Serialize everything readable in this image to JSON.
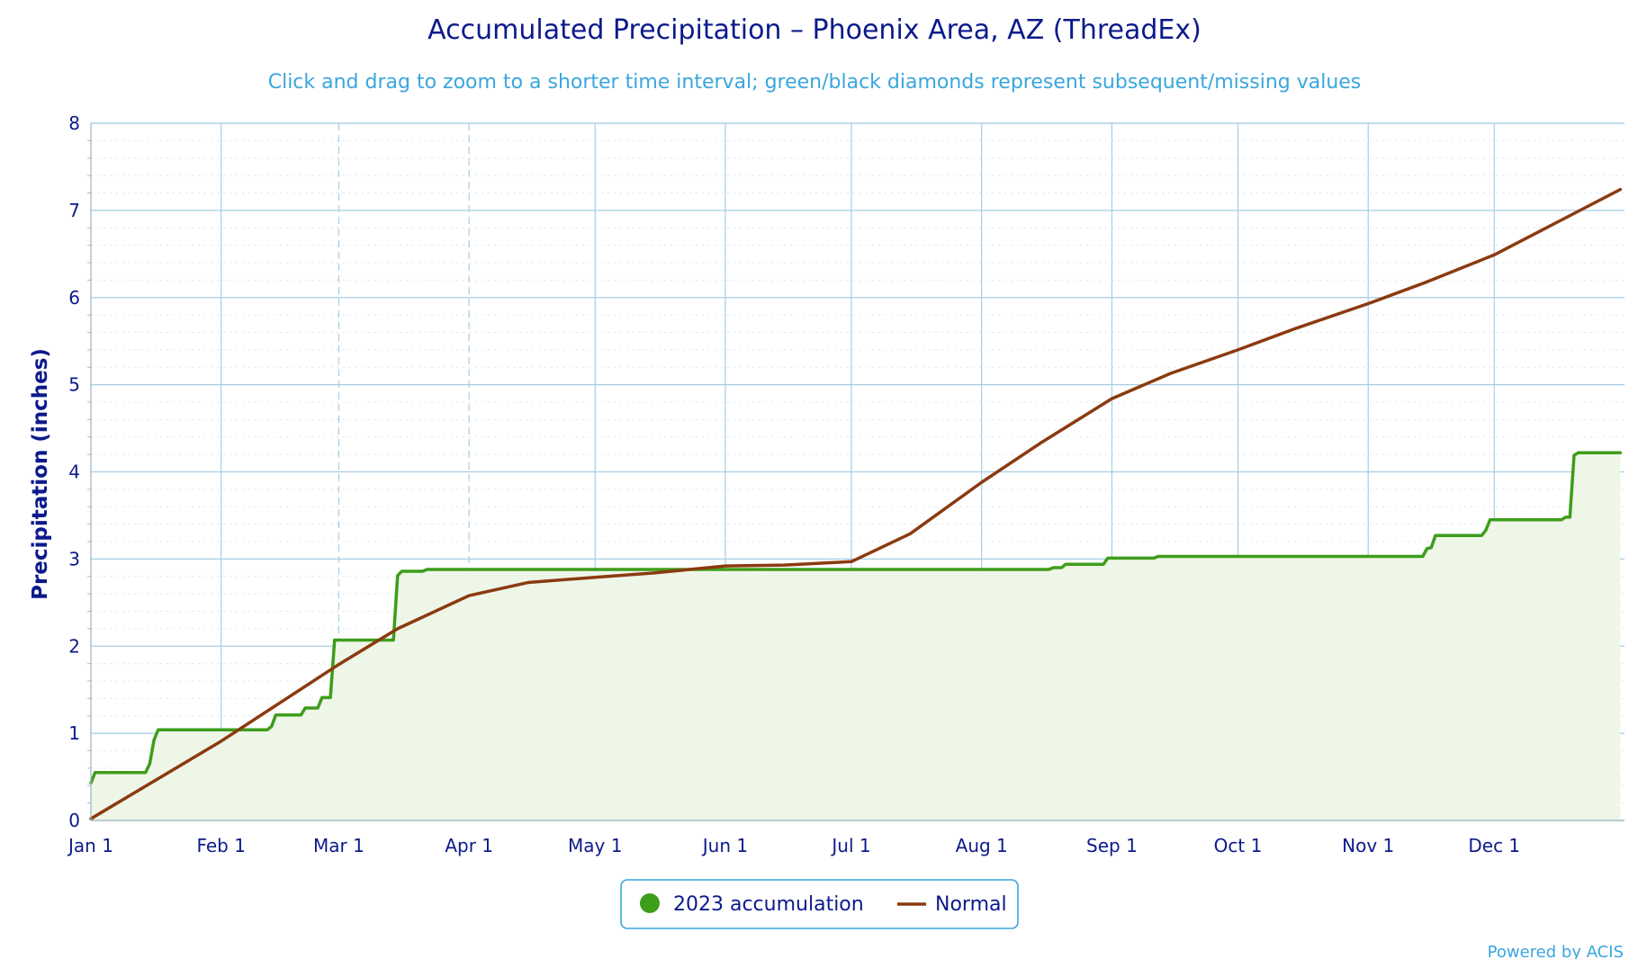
{
  "chart_data": {
    "type": "line",
    "title": "Accumulated Precipitation – Phoenix Area, AZ (ThreadEx)",
    "subtitle": "Click and drag to zoom to a shorter time interval; green/black diamonds represent subsequent/missing values",
    "ylabel": "Precipitation (inches)",
    "ylim": [
      0,
      8
    ],
    "yticks": [
      0,
      1,
      2,
      3,
      4,
      5,
      6,
      7,
      8
    ],
    "xlim": [
      "2023-01-01",
      "2024-01-01"
    ],
    "xticks": [
      {
        "date": "2023-01-01",
        "label": "Jan 1"
      },
      {
        "date": "2023-02-01",
        "label": "Feb 1"
      },
      {
        "date": "2023-03-01",
        "label": "Mar 1"
      },
      {
        "date": "2023-04-01",
        "label": "Apr 1"
      },
      {
        "date": "2023-05-01",
        "label": "May 1"
      },
      {
        "date": "2023-06-01",
        "label": "Jun 1"
      },
      {
        "date": "2023-07-01",
        "label": "Jul 1"
      },
      {
        "date": "2023-08-01",
        "label": "Aug 1"
      },
      {
        "date": "2023-09-01",
        "label": "Sep 1"
      },
      {
        "date": "2023-10-01",
        "label": "Oct 1"
      },
      {
        "date": "2023-11-01",
        "label": "Nov 1"
      },
      {
        "date": "2023-12-01",
        "label": "Dec 1"
      }
    ],
    "grid": true,
    "legend_position": "bottom-center",
    "credit": "Powered by ACIS",
    "series": [
      {
        "name": "2023 accumulation",
        "color": "#3e9d1b",
        "fill": "#eef6e8",
        "style": "step-area",
        "points": [
          [
            "2023-01-01",
            0.43
          ],
          [
            "2023-01-02",
            0.55
          ],
          [
            "2023-01-14",
            0.55
          ],
          [
            "2023-01-15",
            0.65
          ],
          [
            "2023-01-16",
            0.92
          ],
          [
            "2023-01-17",
            1.04
          ],
          [
            "2023-02-12",
            1.04
          ],
          [
            "2023-02-13",
            1.08
          ],
          [
            "2023-02-14",
            1.21
          ],
          [
            "2023-02-20",
            1.21
          ],
          [
            "2023-02-21",
            1.29
          ],
          [
            "2023-02-24",
            1.29
          ],
          [
            "2023-02-25",
            1.41
          ],
          [
            "2023-02-27",
            1.41
          ],
          [
            "2023-02-28",
            2.07
          ],
          [
            "2023-03-14",
            2.07
          ],
          [
            "2023-03-15",
            2.81
          ],
          [
            "2023-03-16",
            2.86
          ],
          [
            "2023-03-21",
            2.86
          ],
          [
            "2023-03-22",
            2.88
          ],
          [
            "2023-08-17",
            2.88
          ],
          [
            "2023-08-18",
            2.9
          ],
          [
            "2023-08-20",
            2.9
          ],
          [
            "2023-08-21",
            2.94
          ],
          [
            "2023-08-30",
            2.94
          ],
          [
            "2023-08-31",
            3.01
          ],
          [
            "2023-09-11",
            3.01
          ],
          [
            "2023-09-12",
            3.03
          ],
          [
            "2023-11-14",
            3.03
          ],
          [
            "2023-11-15",
            3.12
          ],
          [
            "2023-11-16",
            3.13
          ],
          [
            "2023-11-17",
            3.27
          ],
          [
            "2023-11-28",
            3.27
          ],
          [
            "2023-11-29",
            3.33
          ],
          [
            "2023-11-30",
            3.45
          ],
          [
            "2023-12-17",
            3.45
          ],
          [
            "2023-12-18",
            3.48
          ],
          [
            "2023-12-19",
            3.48
          ],
          [
            "2023-12-20",
            4.19
          ],
          [
            "2023-12-21",
            4.22
          ],
          [
            "2023-12-31",
            4.22
          ]
        ]
      },
      {
        "name": "Normal",
        "color": "#8b3a10",
        "style": "line",
        "points": [
          [
            "2023-01-01",
            0.02
          ],
          [
            "2023-02-01",
            0.91
          ],
          [
            "2023-03-01",
            1.79
          ],
          [
            "2023-03-15",
            2.2
          ],
          [
            "2023-04-01",
            2.58
          ],
          [
            "2023-04-15",
            2.73
          ],
          [
            "2023-05-01",
            2.79
          ],
          [
            "2023-05-15",
            2.84
          ],
          [
            "2023-06-01",
            2.92
          ],
          [
            "2023-06-15",
            2.93
          ],
          [
            "2023-07-01",
            2.97
          ],
          [
            "2023-07-15",
            3.29
          ],
          [
            "2023-08-01",
            3.88
          ],
          [
            "2023-08-15",
            4.33
          ],
          [
            "2023-09-01",
            4.84
          ],
          [
            "2023-09-15",
            5.13
          ],
          [
            "2023-10-01",
            5.4
          ],
          [
            "2023-10-15",
            5.65
          ],
          [
            "2023-11-01",
            5.93
          ],
          [
            "2023-11-15",
            6.18
          ],
          [
            "2023-12-01",
            6.49
          ],
          [
            "2023-12-15",
            6.84
          ],
          [
            "2023-12-31",
            7.24
          ]
        ]
      }
    ]
  }
}
